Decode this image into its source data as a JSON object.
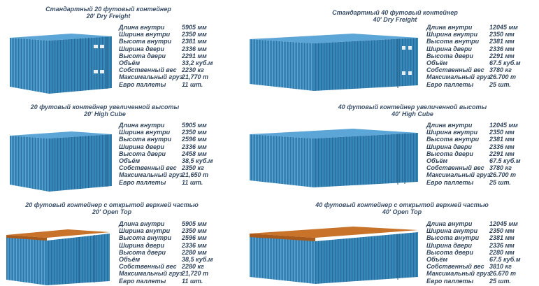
{
  "colors": {
    "container": "#3f8fc2",
    "roof_open_top": "#c8722a"
  },
  "blocks": [
    {
      "title_line1": "Стандартный 20 футовый контейнер",
      "title_line2": "20' Dry Freight",
      "specs": [
        {
          "label": "Длина внутри",
          "value": "5905 мм"
        },
        {
          "label": "Ширина внутри",
          "value": "2350 мм"
        },
        {
          "label": "Высота внутри",
          "value": "2381 мм"
        },
        {
          "label": "Ширина двери",
          "value": "2336 мм"
        },
        {
          "label": "Высота двери",
          "value": "2291 мм"
        },
        {
          "label": "Объём",
          "value": "33,2 куб.м"
        },
        {
          "label": "Собственный вес",
          "value": "2230 кг"
        },
        {
          "label": "Максимальный груз",
          "value": "21,770 т"
        },
        {
          "label": "Евро паллеты",
          "value": "11 шт."
        }
      ]
    },
    {
      "title_line1": "Стандартный 40 футовый контейнер",
      "title_line2": "40' Dry Freight",
      "specs": [
        {
          "label": "Длина внутри",
          "value": "12045 мм"
        },
        {
          "label": "Ширина внутри",
          "value": "2350 мм"
        },
        {
          "label": "Высота внутри",
          "value": "2381 мм"
        },
        {
          "label": "Ширина двери",
          "value": "2336 мм"
        },
        {
          "label": "Высота двери",
          "value": "2291 мм"
        },
        {
          "label": "Объём",
          "value": "67.5 куб.м"
        },
        {
          "label": "Собственный вес",
          "value": "3780 кг"
        },
        {
          "label": "Максимальный груз",
          "value": "26.700 т"
        },
        {
          "label": "Евро паллеты",
          "value": "25 шт."
        }
      ]
    },
    {
      "title_line1": "20 футовый контейнер увеличенной высоты",
      "title_line2": "20' High Cube",
      "specs": [
        {
          "label": "Длина внутри",
          "value": "5905 мм"
        },
        {
          "label": "Ширина внутри",
          "value": "2350 мм"
        },
        {
          "label": "Высота внутри",
          "value": "2596 мм"
        },
        {
          "label": "Ширина двери",
          "value": "2336 мм"
        },
        {
          "label": "Высота двери",
          "value": "2458 мм"
        },
        {
          "label": "Объём",
          "value": "38,5 куб.м"
        },
        {
          "label": "Собственный вес",
          "value": "2350 кг"
        },
        {
          "label": "Максимальный груз",
          "value": "21,650 т"
        },
        {
          "label": "Евро паллеты",
          "value": "11 шт."
        }
      ]
    },
    {
      "title_line1": "40 футовый контейнер увеличенной высоты",
      "title_line2": "40' High Cube",
      "specs": [
        {
          "label": "Длина внутри",
          "value": "12045 мм"
        },
        {
          "label": "Ширина внутри",
          "value": "2350 мм"
        },
        {
          "label": "Высота внутри",
          "value": "2381 мм"
        },
        {
          "label": "Ширина двери",
          "value": "2336 мм"
        },
        {
          "label": "Высота двери",
          "value": "2291 мм"
        },
        {
          "label": "Объём",
          "value": "67.5 куб.м"
        },
        {
          "label": "Собственный вес",
          "value": "3780 кг"
        },
        {
          "label": "Максимальный груз",
          "value": "26.700 т"
        },
        {
          "label": "Евро паллеты",
          "value": "25 шт."
        }
      ]
    },
    {
      "title_line1": "20 футовый контейнер с открытой верхней частью",
      "title_line2": "20' Open Top",
      "specs": [
        {
          "label": "Длина внутри",
          "value": "5905 мм"
        },
        {
          "label": "Ширина внутри",
          "value": "2350 мм"
        },
        {
          "label": "Высота внутри",
          "value": "2596 мм"
        },
        {
          "label": "Ширина двери",
          "value": "2336 мм"
        },
        {
          "label": "Высота двери",
          "value": "2280 мм"
        },
        {
          "label": "Объём",
          "value": "38,5 куб.м"
        },
        {
          "label": "Собственный вес",
          "value": "2280 кг"
        },
        {
          "label": "Максимальный груз",
          "value": "21,720 т"
        },
        {
          "label": "Евро паллеты",
          "value": "11 шт."
        }
      ]
    },
    {
      "title_line1": "40 футовый контейнер с открытой верхней частью",
      "title_line2": "40' Open Top",
      "specs": [
        {
          "label": "Длина внутри",
          "value": "12045 мм"
        },
        {
          "label": "Ширина внутри",
          "value": "2350 мм"
        },
        {
          "label": "Высота внутри",
          "value": "2381 мм"
        },
        {
          "label": "Ширина двери",
          "value": "2336 мм"
        },
        {
          "label": "Высота двери",
          "value": "2280 мм"
        },
        {
          "label": "Объём",
          "value": "67.5 куб.м"
        },
        {
          "label": "Собственный вес",
          "value": "3810 кг"
        },
        {
          "label": "Максимальный груз",
          "value": "26.670 т"
        },
        {
          "label": "Евро паллеты",
          "value": "25 шт."
        }
      ]
    }
  ]
}
